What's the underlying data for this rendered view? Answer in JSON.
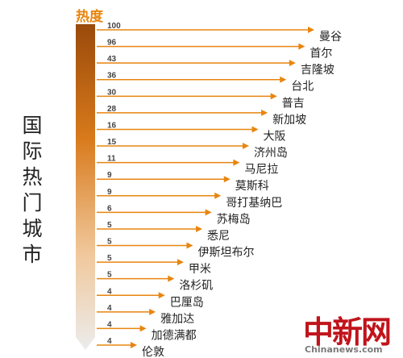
{
  "side_title": "国际热门城市",
  "chart_data": {
    "type": "bar",
    "title": "热度",
    "orientation": "horizontal",
    "categories": [
      "曼谷",
      "首尔",
      "吉隆坡",
      "台北",
      "普吉",
      "新加坡",
      "大阪",
      "济州岛",
      "马尼拉",
      "莫斯科",
      "哥打基纳巴",
      "苏梅岛",
      "悉尼",
      "伊斯坦布尔",
      "甲米",
      "洛杉矶",
      "巴厘岛",
      "雅加达",
      "加德满都",
      "伦敦"
    ],
    "values": [
      100,
      96,
      43,
      36,
      30,
      28,
      16,
      15,
      11,
      9,
      9,
      6,
      5,
      5,
      5,
      5,
      4,
      4,
      4,
      4
    ],
    "colors": {
      "accent": "#e8850f",
      "arrow": "#e8850f",
      "bar_top": "#9a4a0b",
      "bar_bottom": "#e9e9e9"
    }
  },
  "watermark": {
    "cn": "中新网",
    "en": "Chinanews.com"
  }
}
